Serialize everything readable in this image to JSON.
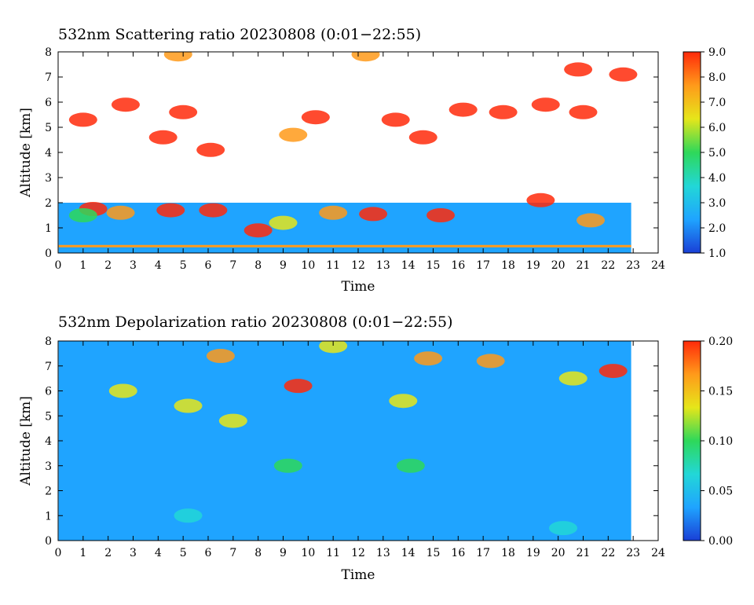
{
  "chart_data": [
    {
      "type": "heatmap",
      "title": "532nm Scattering ratio  20230808 (0:01−22:55)",
      "xlabel": "Time",
      "ylabel": "Altitude [km]",
      "xlim": [
        0,
        24
      ],
      "ylim": [
        0,
        8
      ],
      "x_ticks": [
        "0",
        "1",
        "2",
        "3",
        "4",
        "5",
        "6",
        "7",
        "8",
        "9",
        "10",
        "11",
        "12",
        "13",
        "14",
        "15",
        "16",
        "17",
        "18",
        "19",
        "20",
        "21",
        "22",
        "23",
        "24"
      ],
      "y_ticks": [
        "0",
        "1",
        "2",
        "3",
        "4",
        "5",
        "6",
        "7",
        "8"
      ],
      "data_extent_hours": [
        0.02,
        22.92
      ],
      "colorbar": {
        "range": [
          1.0,
          9.0
        ],
        "ticks": [
          "1.0",
          "2.0",
          "3.0",
          "4.0",
          "5.0",
          "6.0",
          "7.0",
          "8.0",
          "9.0"
        ],
        "colors": [
          "#1a3fd6",
          "#1fa4ff",
          "#22d7d7",
          "#2ed85a",
          "#e6e61a",
          "#ff9a1a",
          "#ff2a0a"
        ]
      },
      "features": [
        {
          "t": 1.4,
          "alt": 1.75,
          "v": 9.0
        },
        {
          "t": 1.0,
          "alt": 1.5,
          "v": 5.5
        },
        {
          "t": 2.5,
          "alt": 1.6,
          "v": 8.0
        },
        {
          "t": 4.5,
          "alt": 1.7,
          "v": 9.0
        },
        {
          "t": 6.2,
          "alt": 1.7,
          "v": 8.5
        },
        {
          "t": 8.0,
          "alt": 0.9,
          "v": 9.0
        },
        {
          "t": 9.0,
          "alt": 1.2,
          "v": 6.5
        },
        {
          "t": 11.0,
          "alt": 1.6,
          "v": 8.0
        },
        {
          "t": 12.6,
          "alt": 1.55,
          "v": 9.0
        },
        {
          "t": 15.3,
          "alt": 1.5,
          "v": 9.0
        },
        {
          "t": 19.3,
          "alt": 2.1,
          "v": 8.5
        },
        {
          "t": 21.3,
          "alt": 1.3,
          "v": 8.0
        },
        {
          "t": 1.0,
          "alt": 5.3,
          "v": 9.0
        },
        {
          "t": 2.7,
          "alt": 5.9,
          "v": 9.0
        },
        {
          "t": 4.2,
          "alt": 4.6,
          "v": 9.0
        },
        {
          "t": 5.0,
          "alt": 5.6,
          "v": 9.0
        },
        {
          "t": 6.1,
          "alt": 4.1,
          "v": 8.5
        },
        {
          "t": 9.4,
          "alt": 4.7,
          "v": 8.0
        },
        {
          "t": 10.3,
          "alt": 5.4,
          "v": 9.0
        },
        {
          "t": 13.5,
          "alt": 5.3,
          "v": 9.0
        },
        {
          "t": 14.6,
          "alt": 4.6,
          "v": 9.0
        },
        {
          "t": 16.2,
          "alt": 5.7,
          "v": 9.0
        },
        {
          "t": 17.8,
          "alt": 5.6,
          "v": 9.0
        },
        {
          "t": 19.5,
          "alt": 5.9,
          "v": 9.0
        },
        {
          "t": 21.0,
          "alt": 5.6,
          "v": 9.0
        },
        {
          "t": 20.8,
          "alt": 7.3,
          "v": 9.0
        },
        {
          "t": 22.6,
          "alt": 7.1,
          "v": 9.0
        },
        {
          "t": 4.8,
          "alt": 7.9,
          "v": 8.0
        },
        {
          "t": 12.3,
          "alt": 7.9,
          "v": 7.0
        }
      ]
    },
    {
      "type": "heatmap",
      "title": "532nm Depolarization ratio  20230808 (0:01−22:55)",
      "xlabel": "Time",
      "ylabel": "Altitude [km]",
      "xlim": [
        0,
        24
      ],
      "ylim": [
        0,
        8
      ],
      "x_ticks": [
        "0",
        "1",
        "2",
        "3",
        "4",
        "5",
        "6",
        "7",
        "8",
        "9",
        "10",
        "11",
        "12",
        "13",
        "14",
        "15",
        "16",
        "17",
        "18",
        "19",
        "20",
        "21",
        "22",
        "23",
        "24"
      ],
      "y_ticks": [
        "0",
        "1",
        "2",
        "3",
        "4",
        "5",
        "6",
        "7",
        "8"
      ],
      "data_extent_hours": [
        0.02,
        22.92
      ],
      "colorbar": {
        "range": [
          0.0,
          0.2
        ],
        "ticks": [
          "0.00",
          "0.05",
          "0.10",
          "0.15",
          "0.20"
        ],
        "colors": [
          "#1a3fd6",
          "#1fa4ff",
          "#22d7d7",
          "#2ed85a",
          "#e6e61a",
          "#ff9a1a",
          "#ff2a0a"
        ]
      },
      "features": [
        {
          "t": 9.2,
          "alt": 3.0,
          "v": 0.1
        },
        {
          "t": 14.1,
          "alt": 3.0,
          "v": 0.09
        },
        {
          "t": 9.6,
          "alt": 6.2,
          "v": 0.19
        },
        {
          "t": 22.2,
          "alt": 6.8,
          "v": 0.2
        },
        {
          "t": 6.5,
          "alt": 7.4,
          "v": 0.17
        },
        {
          "t": 14.8,
          "alt": 7.3,
          "v": 0.16
        },
        {
          "t": 17.3,
          "alt": 7.2,
          "v": 0.17
        },
        {
          "t": 13.8,
          "alt": 5.6,
          "v": 0.15
        },
        {
          "t": 5.2,
          "alt": 5.4,
          "v": 0.12
        },
        {
          "t": 2.6,
          "alt": 6.0,
          "v": 0.13
        },
        {
          "t": 20.6,
          "alt": 6.5,
          "v": 0.14
        },
        {
          "t": 11.0,
          "alt": 7.8,
          "v": 0.15
        },
        {
          "t": 7.0,
          "alt": 4.8,
          "v": 0.12
        },
        {
          "t": 5.2,
          "alt": 1.0,
          "v": 0.07
        },
        {
          "t": 20.2,
          "alt": 0.5,
          "v": 0.07
        }
      ]
    }
  ]
}
